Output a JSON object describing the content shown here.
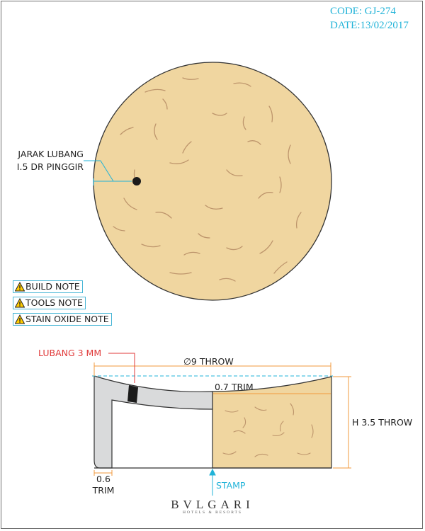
{
  "header": {
    "code": "CODE: GJ-274",
    "date": "DATE:13/02/2017"
  },
  "top_view": {
    "hole_label_line1": "JARAK LUBANG",
    "hole_label_line2": "I.5 DR PINGGIR"
  },
  "notes": [
    "BUILD NOTE",
    "TOOLS NOTE",
    "STAIN OXIDE NOTE"
  ],
  "section_view": {
    "hole_label": "LUBANG 3 MM",
    "diameter_label": "∅9 THROW",
    "inner_trim_label": "0.7 TRIM",
    "height_label": "H 3.5 THROW",
    "base_trim_value": "0.6",
    "base_trim_word": "TRIM",
    "stamp_label": "STAMP"
  },
  "logo": {
    "main": "BVLGARI",
    "sub": "HOTELS & RESORTS"
  },
  "colors": {
    "clay": "#f0d6a0",
    "accent": "#21b3d8",
    "dimension": "#f29a3d",
    "hole_label": "#e03a3a",
    "glaze_section": "#d9dadb"
  }
}
